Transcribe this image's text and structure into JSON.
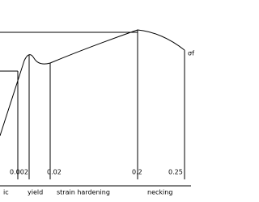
{
  "strain_ticks": [
    "0.002",
    "0.02",
    "0.2",
    "0.25"
  ],
  "regions": [
    "ic",
    "yield",
    "strain hardening",
    "necking"
  ],
  "fracture_label": "σf"
}
